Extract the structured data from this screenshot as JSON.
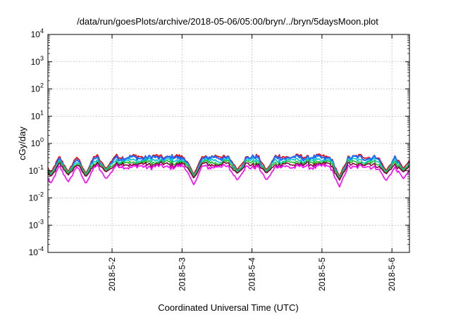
{
  "chart_data": {
    "type": "line",
    "title": "/data/run/goesPlots/archive/2018-05-06/05:00/bryn/../bryn/5daysMoon.plot",
    "xlabel": "Coordinated Universal Time (UTC)",
    "ylabel": "cGy/day",
    "yscale": "log",
    "ylim": [
      0.0001,
      10000
    ],
    "y_ticks": [
      {
        "base": "10",
        "exp": "-4",
        "value": 0.0001
      },
      {
        "base": "10",
        "exp": "-3",
        "value": 0.001
      },
      {
        "base": "10",
        "exp": "-2",
        "value": 0.01
      },
      {
        "base": "10",
        "exp": "-1",
        "value": 0.1
      },
      {
        "base": "10",
        "exp": "0",
        "value": 1
      },
      {
        "base": "10",
        "exp": "1",
        "value": 10
      },
      {
        "base": "10",
        "exp": "2",
        "value": 100
      },
      {
        "base": "10",
        "exp": "3",
        "value": 1000
      },
      {
        "base": "10",
        "exp": "4",
        "value": 10000
      }
    ],
    "xlim": [
      "2018-05-01T02:00",
      "2018-05-06T06:00"
    ],
    "x_ticks": [
      {
        "label": "2018-5-2",
        "value": "2018-05-02T00:00"
      },
      {
        "label": "2018-5-3",
        "value": "2018-05-03T00:00"
      },
      {
        "label": "2018-5-4",
        "value": "2018-05-04T00:00"
      },
      {
        "label": "2018-5-5",
        "value": "2018-05-05T00:00"
      },
      {
        "label": "2018-5-6",
        "value": "2018-05-06T00:00"
      }
    ],
    "grid": true,
    "legend": "none",
    "series": [
      {
        "color": "#ee0000",
        "base_level": 0.33,
        "dip_level": 0.12
      },
      {
        "color": "#1a6bff",
        "base_level": 0.3,
        "dip_level": 0.09
      },
      {
        "color": "#00c8c8",
        "base_level": 0.24,
        "dip_level": 0.11
      },
      {
        "color": "#22bb22",
        "base_level": 0.2,
        "dip_level": 0.1
      },
      {
        "color": "#880044",
        "base_level": 0.17,
        "dip_level": 0.09
      },
      {
        "color": "#ff00ff",
        "base_level": 0.14,
        "dip_level": 0.05
      }
    ],
    "dips": [
      {
        "time": "2018-05-01T03:00",
        "level": 0.06
      },
      {
        "time": "2018-05-01T09:00",
        "level": 0.07
      },
      {
        "time": "2018-05-01T15:00",
        "level": 0.06
      },
      {
        "time": "2018-05-01T22:00",
        "level": 0.09
      },
      {
        "time": "2018-05-03T04:00",
        "level": 0.055
      },
      {
        "time": "2018-05-03T19:00",
        "level": 0.08
      },
      {
        "time": "2018-05-04T05:00",
        "level": 0.08
      },
      {
        "time": "2018-05-05T06:00",
        "level": 0.045
      },
      {
        "time": "2018-05-05T22:00",
        "level": 0.075
      },
      {
        "time": "2018-05-06T04:00",
        "level": 0.09
      }
    ]
  }
}
